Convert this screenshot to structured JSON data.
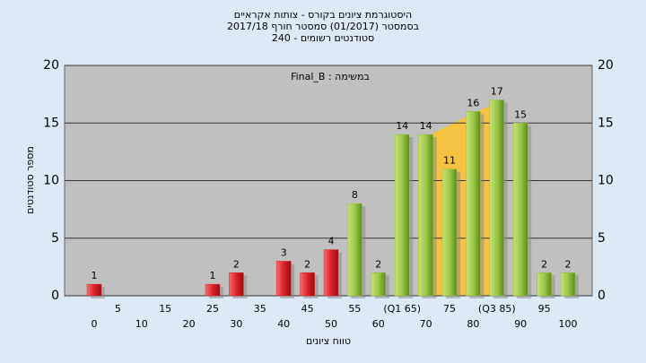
{
  "chart_data": {
    "type": "bar",
    "title": "היסטוגרמת ציונים בקורס - צותות אקראיים",
    "subtitle": "בסמסטר  (01/2017)  סמסטר חורף 2017/18",
    "subtitle2": "סטודנטים רשומים - 240",
    "annotation": "Final_B : במשימה",
    "x_label": "טווח ציונים",
    "y_label": "מספר סטודנטים",
    "categories": [
      "0",
      "5",
      "10",
      "15",
      "20",
      "25",
      "30",
      "35",
      "40",
      "45",
      "50",
      "55",
      "60",
      "(Q1 65)",
      "70",
      "75",
      "80",
      "(Q3 85)",
      "90",
      "95",
      "100"
    ],
    "values": [
      1,
      0,
      0,
      0,
      0,
      1,
      2,
      0,
      3,
      2,
      4,
      8,
      2,
      14,
      14,
      11,
      16,
      17,
      15,
      2,
      2
    ],
    "colors": [
      "#e0202a",
      "#e0202a",
      "#e0202a",
      "#e0202a",
      "#e0202a",
      "#e0202a",
      "#e0202a",
      "#e0202a",
      "#e0202a",
      "#e0202a",
      "#e0202a",
      "#8fc23a",
      "#8fc23a",
      "#8fc23a",
      "#8fc23a",
      "#8fc23a",
      "#8fc23a",
      "#8fc23a",
      "#8fc23a",
      "#8fc23a",
      "#8fc23a"
    ],
    "ylim": [
      0,
      20
    ],
    "yticks": [
      0,
      5,
      10,
      15,
      20
    ],
    "grid": true
  }
}
